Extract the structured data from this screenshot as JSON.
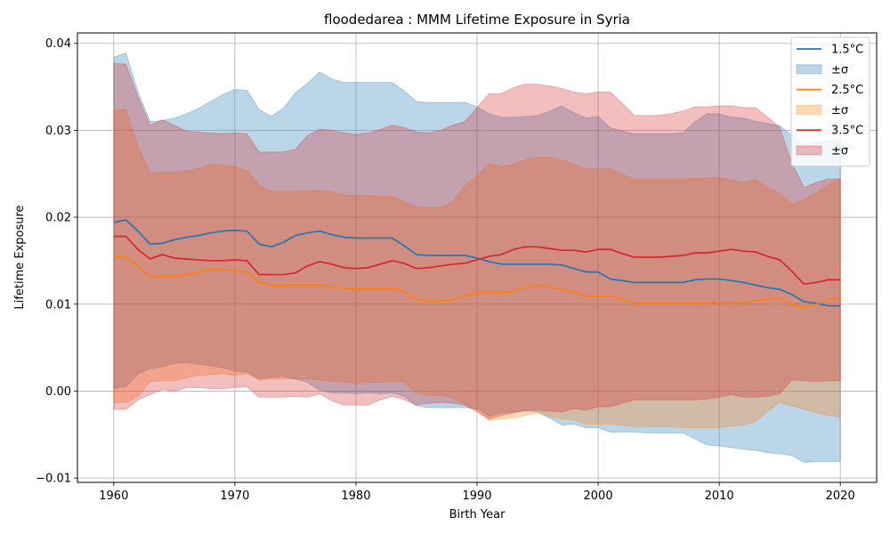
{
  "chart_data": {
    "type": "line",
    "title": "floodedarea : MMM Lifetime Exposure in Syria",
    "xlabel": "Birth Year",
    "ylabel": "Lifetime Exposure",
    "xlim": [
      1957,
      2023
    ],
    "ylim": [
      -0.0105,
      0.0412
    ],
    "xticks": [
      1960,
      1970,
      1980,
      1990,
      2000,
      2010,
      2020
    ],
    "xtick_labels": [
      "1960",
      "1970",
      "1980",
      "1990",
      "2000",
      "2010",
      "2020"
    ],
    "yticks": [
      -0.01,
      0.0,
      0.01,
      0.02,
      0.03,
      0.04
    ],
    "ytick_labels": [
      "−0.01",
      "0.00",
      "0.01",
      "0.02",
      "0.03",
      "0.04"
    ],
    "grid": true,
    "legend_position": "top-right",
    "x": [
      1960,
      1961,
      1962,
      1963,
      1964,
      1965,
      1966,
      1967,
      1968,
      1969,
      1970,
      1971,
      1972,
      1973,
      1974,
      1975,
      1976,
      1977,
      1978,
      1979,
      1980,
      1981,
      1982,
      1983,
      1984,
      1985,
      1986,
      1987,
      1988,
      1989,
      1990,
      1991,
      1992,
      1993,
      1994,
      1995,
      1996,
      1997,
      1998,
      1999,
      2000,
      2001,
      2002,
      2003,
      2004,
      2005,
      2006,
      2007,
      2008,
      2009,
      2010,
      2011,
      2012,
      2013,
      2014,
      2015,
      2016,
      2017,
      2018,
      2019,
      2020
    ],
    "series": [
      {
        "name": "1.5°C",
        "band_label": "±σ",
        "color": "#1f77b4",
        "mean": [
          0.0194,
          0.0197,
          0.0184,
          0.0169,
          0.017,
          0.0174,
          0.0177,
          0.0179,
          0.0182,
          0.0184,
          0.0185,
          0.0184,
          0.0169,
          0.0166,
          0.0171,
          0.0179,
          0.0182,
          0.0184,
          0.018,
          0.0177,
          0.0176,
          0.0176,
          0.0176,
          0.0176,
          0.0167,
          0.0157,
          0.0156,
          0.0156,
          0.0156,
          0.0156,
          0.0153,
          0.0149,
          0.0146,
          0.0146,
          0.0146,
          0.0146,
          0.0146,
          0.0145,
          0.0141,
          0.0137,
          0.0137,
          0.0129,
          0.0127,
          0.0125,
          0.0125,
          0.0125,
          0.0125,
          0.0125,
          0.0128,
          0.0129,
          0.0129,
          0.0127,
          0.0125,
          0.0122,
          0.0119,
          0.0117,
          0.0111,
          0.0103,
          0.0101,
          0.0098,
          0.0098
        ],
        "upper": [
          0.0384,
          0.0389,
          0.0344,
          0.031,
          0.0311,
          0.0314,
          0.0319,
          0.0325,
          0.0333,
          0.0341,
          0.0347,
          0.0346,
          0.0324,
          0.0316,
          0.0325,
          0.0343,
          0.0354,
          0.0367,
          0.0359,
          0.0355,
          0.0355,
          0.0355,
          0.0355,
          0.0355,
          0.0345,
          0.0333,
          0.0332,
          0.0332,
          0.0332,
          0.0332,
          0.0327,
          0.0319,
          0.0315,
          0.0315,
          0.0316,
          0.0317,
          0.0322,
          0.0328,
          0.032,
          0.0314,
          0.0316,
          0.0303,
          0.0299,
          0.0296,
          0.0296,
          0.0296,
          0.0296,
          0.0297,
          0.031,
          0.0319,
          0.0319,
          0.0315,
          0.0314,
          0.031,
          0.0308,
          0.0305,
          0.0294,
          0.0284,
          0.0287,
          0.0288,
          0.0289
        ],
        "lower": [
          0.0003,
          0.0005,
          0.002,
          0.0026,
          0.0028,
          0.0032,
          0.0033,
          0.0031,
          0.0029,
          0.0027,
          0.0023,
          0.0022,
          0.0014,
          0.0016,
          0.0017,
          0.0014,
          0.001,
          0.0001,
          -0.0002,
          -0.0002,
          -0.0003,
          -0.0002,
          -0.0003,
          -0.0002,
          -0.0006,
          -0.0017,
          -0.0019,
          -0.0019,
          -0.0019,
          -0.0019,
          -0.002,
          -0.0029,
          -0.0025,
          -0.0024,
          -0.0023,
          -0.0024,
          -0.0031,
          -0.0039,
          -0.0038,
          -0.0042,
          -0.0042,
          -0.0047,
          -0.0047,
          -0.0047,
          -0.0048,
          -0.0048,
          -0.0048,
          -0.0048,
          -0.0055,
          -0.0062,
          -0.0063,
          -0.0065,
          -0.0067,
          -0.0068,
          -0.0071,
          -0.0072,
          -0.0074,
          -0.0082,
          -0.0081,
          -0.0081,
          -0.0081
        ]
      },
      {
        "name": "2.5°C",
        "band_label": "±σ",
        "color": "#ff7f0e",
        "mean": [
          0.0155,
          0.0155,
          0.0144,
          0.0131,
          0.0132,
          0.0132,
          0.0134,
          0.0137,
          0.014,
          0.014,
          0.0138,
          0.0137,
          0.0125,
          0.0122,
          0.0122,
          0.0122,
          0.0122,
          0.0122,
          0.012,
          0.0118,
          0.0117,
          0.0118,
          0.0117,
          0.0118,
          0.0114,
          0.0105,
          0.0103,
          0.0103,
          0.0105,
          0.011,
          0.0113,
          0.0114,
          0.0113,
          0.0115,
          0.0119,
          0.0122,
          0.012,
          0.0117,
          0.0114,
          0.0109,
          0.0109,
          0.0109,
          0.0105,
          0.0101,
          0.0101,
          0.0101,
          0.0101,
          0.0101,
          0.0101,
          0.0101,
          0.0102,
          0.0102,
          0.0101,
          0.0104,
          0.0106,
          0.0107,
          0.0099,
          0.0096,
          0.01,
          0.0105,
          0.0108
        ],
        "upper": [
          0.0323,
          0.0324,
          0.0282,
          0.0251,
          0.0252,
          0.0252,
          0.0253,
          0.0256,
          0.0261,
          0.026,
          0.0258,
          0.0254,
          0.0237,
          0.023,
          0.023,
          0.023,
          0.023,
          0.0231,
          0.0229,
          0.0226,
          0.0225,
          0.0225,
          0.0224,
          0.0224,
          0.0218,
          0.0212,
          0.0211,
          0.0211,
          0.0218,
          0.0236,
          0.0248,
          0.0262,
          0.0258,
          0.0261,
          0.0266,
          0.0269,
          0.0269,
          0.0266,
          0.0261,
          0.0256,
          0.0256,
          0.0256,
          0.0249,
          0.0244,
          0.0244,
          0.0244,
          0.0244,
          0.0244,
          0.0245,
          0.0245,
          0.0246,
          0.0243,
          0.024,
          0.0243,
          0.0235,
          0.0227,
          0.0215,
          0.022,
          0.0228,
          0.0238,
          0.0245
        ],
        "lower": [
          -0.0013,
          -0.0013,
          -0.0006,
          0.0011,
          0.0012,
          0.0012,
          0.0015,
          0.0018,
          0.0019,
          0.002,
          0.0018,
          0.002,
          0.0013,
          0.0014,
          0.0014,
          0.0014,
          0.0014,
          0.0013,
          0.0011,
          0.001,
          0.0009,
          0.001,
          0.001,
          0.0011,
          0.001,
          -0.0002,
          -0.0005,
          -0.0005,
          -0.0008,
          -0.0016,
          -0.0022,
          -0.0034,
          -0.0032,
          -0.0031,
          -0.0028,
          -0.0025,
          -0.0029,
          -0.0032,
          -0.0033,
          -0.0038,
          -0.0038,
          -0.0038,
          -0.0039,
          -0.0041,
          -0.0041,
          -0.0041,
          -0.0041,
          -0.0042,
          -0.0042,
          -0.0042,
          -0.0042,
          -0.004,
          -0.0039,
          -0.0035,
          -0.0023,
          -0.0013,
          -0.0017,
          -0.0021,
          -0.0025,
          -0.0028,
          -0.003
        ]
      },
      {
        "name": "3.5°C",
        "band_label": "±σ",
        "color": "#d62728",
        "mean": [
          0.0178,
          0.0178,
          0.0163,
          0.0152,
          0.0157,
          0.0153,
          0.0152,
          0.0151,
          0.015,
          0.015,
          0.0151,
          0.015,
          0.0134,
          0.0134,
          0.0134,
          0.0136,
          0.0144,
          0.0149,
          0.0146,
          0.0142,
          0.0141,
          0.0142,
          0.0146,
          0.015,
          0.0147,
          0.0141,
          0.0142,
          0.0144,
          0.0146,
          0.0147,
          0.0151,
          0.0155,
          0.0157,
          0.0163,
          0.0166,
          0.0166,
          0.0164,
          0.0162,
          0.0162,
          0.016,
          0.0163,
          0.0163,
          0.0158,
          0.0154,
          0.0154,
          0.0154,
          0.0155,
          0.0156,
          0.0159,
          0.0159,
          0.0161,
          0.0163,
          0.0161,
          0.016,
          0.0155,
          0.0151,
          0.0138,
          0.0123,
          0.0125,
          0.0128,
          0.0128
        ],
        "upper": [
          0.0377,
          0.0376,
          0.0338,
          0.0306,
          0.0312,
          0.0306,
          0.0299,
          0.0298,
          0.0297,
          0.0296,
          0.0297,
          0.0296,
          0.0275,
          0.0275,
          0.0275,
          0.0278,
          0.0294,
          0.0301,
          0.03,
          0.0297,
          0.0295,
          0.0297,
          0.0301,
          0.0306,
          0.0303,
          0.0298,
          0.0297,
          0.03,
          0.0306,
          0.031,
          0.0326,
          0.0342,
          0.0342,
          0.0349,
          0.0353,
          0.0353,
          0.0351,
          0.0348,
          0.0344,
          0.0342,
          0.0344,
          0.0344,
          0.0331,
          0.0317,
          0.0317,
          0.0317,
          0.0319,
          0.0322,
          0.0327,
          0.0327,
          0.0328,
          0.0328,
          0.0326,
          0.0326,
          0.0315,
          0.0303,
          0.0262,
          0.0234,
          0.024,
          0.0244,
          0.0244
        ],
        "lower": [
          -0.0021,
          -0.0021,
          -0.001,
          -0.0004,
          0.0002,
          0.0,
          0.0004,
          0.0004,
          0.0003,
          0.0003,
          0.0004,
          0.0005,
          -0.0007,
          -0.0007,
          -0.0007,
          -0.0006,
          -0.0007,
          -0.0003,
          -0.0011,
          -0.0016,
          -0.0016,
          -0.0016,
          -0.001,
          -0.0006,
          -0.001,
          -0.0016,
          -0.0014,
          -0.0013,
          -0.0014,
          -0.0016,
          -0.0024,
          -0.0032,
          -0.0028,
          -0.0025,
          -0.0022,
          -0.0022,
          -0.0023,
          -0.0024,
          -0.002,
          -0.0022,
          -0.0018,
          -0.0018,
          -0.0014,
          -0.001,
          -0.001,
          -0.001,
          -0.001,
          -0.001,
          -0.001,
          -0.0009,
          -0.0007,
          -0.0004,
          -0.0007,
          -0.0007,
          -0.0006,
          -0.0003,
          0.0013,
          0.0012,
          0.0011,
          0.0012,
          0.0012
        ]
      }
    ]
  }
}
